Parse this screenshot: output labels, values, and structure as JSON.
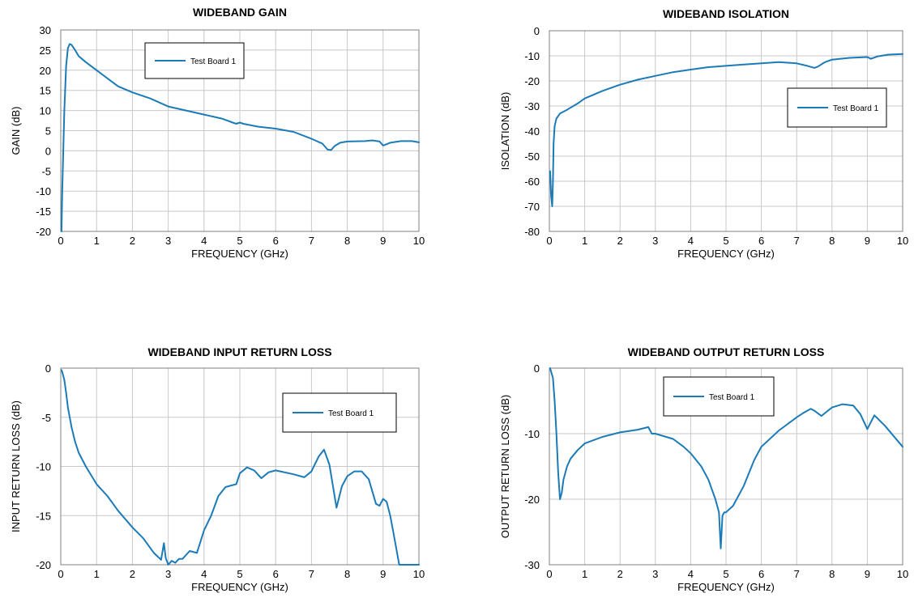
{
  "chart_data": [
    {
      "type": "line",
      "title": "WIDEBAND GAIN",
      "xlabel": "FREQUENCY (GHz)",
      "ylabel": "GAIN (dB)",
      "xlim": [
        0,
        10
      ],
      "ylim": [
        -20,
        30
      ],
      "xticks": [
        0,
        1,
        2,
        3,
        4,
        5,
        6,
        7,
        8,
        9,
        10
      ],
      "yticks": [
        -20,
        -15,
        -10,
        -5,
        0,
        5,
        10,
        15,
        20,
        25,
        30
      ],
      "grid": true,
      "legend_position": "top-left",
      "series": [
        {
          "name": "Test Board 1",
          "color": "#1a7bb8",
          "x": [
            0.02,
            0.04,
            0.07,
            0.1,
            0.15,
            0.2,
            0.25,
            0.3,
            0.4,
            0.5,
            0.7,
            1.0,
            1.3,
            1.6,
            2.0,
            2.5,
            3.0,
            3.5,
            4.0,
            4.5,
            4.8,
            4.9,
            5.0,
            5.1,
            5.5,
            6.0,
            6.5,
            7.0,
            7.3,
            7.45,
            7.55,
            7.65,
            7.8,
            8.0,
            8.5,
            8.7,
            8.9,
            9.0,
            9.2,
            9.5,
            9.8,
            10.0
          ],
          "y": [
            -20,
            -10,
            0,
            10,
            21,
            25.5,
            26.5,
            26.3,
            25,
            23.5,
            22,
            20,
            18,
            16,
            14.5,
            13,
            11,
            10,
            9,
            8,
            7,
            6.7,
            7,
            6.7,
            6,
            5.5,
            4.7,
            3,
            1.8,
            0.3,
            0.2,
            1.2,
            2,
            2.3,
            2.4,
            2.6,
            2.3,
            1.3,
            2,
            2.4,
            2.4,
            2.1
          ]
        }
      ]
    },
    {
      "type": "line",
      "title": "WIDEBAND ISOLATION",
      "xlabel": "FREQUENCY (GHz)",
      "ylabel": "ISOLATION (dB)",
      "xlim": [
        0,
        10
      ],
      "ylim": [
        -80,
        0
      ],
      "xticks": [
        0,
        1,
        2,
        3,
        4,
        5,
        6,
        7,
        8,
        9,
        10
      ],
      "yticks": [
        -80,
        -70,
        -60,
        -50,
        -40,
        -30,
        -20,
        -10,
        0
      ],
      "grid": true,
      "legend_position": "right",
      "series": [
        {
          "name": "Test Board 1",
          "color": "#1a7bb8",
          "x": [
            0.02,
            0.05,
            0.08,
            0.1,
            0.12,
            0.15,
            0.2,
            0.3,
            0.5,
            0.8,
            1.0,
            1.5,
            2.0,
            2.5,
            3.0,
            3.5,
            4.0,
            4.5,
            5.0,
            5.5,
            6.0,
            6.5,
            7.0,
            7.3,
            7.5,
            7.6,
            7.8,
            8.0,
            8.5,
            9.0,
            9.1,
            9.3,
            9.6,
            10.0
          ],
          "y": [
            -56,
            -66,
            -70,
            -60,
            -45,
            -38,
            -35,
            -33,
            -31.5,
            -29,
            -27,
            -24,
            -21.5,
            -19.5,
            -18,
            -16.5,
            -15.5,
            -14.5,
            -14,
            -13.5,
            -13,
            -12.5,
            -13,
            -14,
            -14.8,
            -14.3,
            -12.5,
            -11.5,
            -10.8,
            -10.5,
            -11.2,
            -10.2,
            -9.5,
            -9.3
          ]
        }
      ]
    },
    {
      "type": "line",
      "title": "WIDEBAND INPUT RETURN LOSS",
      "xlabel": "FREQUENCY (GHz)",
      "ylabel": "INPUT RETURN LOSS (dB)",
      "xlim": [
        0,
        10
      ],
      "ylim": [
        -20,
        0
      ],
      "xticks": [
        0,
        1,
        2,
        3,
        4,
        5,
        6,
        7,
        8,
        9,
        10
      ],
      "yticks": [
        -20,
        -15,
        -10,
        -5,
        0
      ],
      "grid": true,
      "legend_position": "top-right",
      "series": [
        {
          "name": "Test Board 1",
          "color": "#1a7bb8",
          "x": [
            0.02,
            0.05,
            0.1,
            0.15,
            0.2,
            0.3,
            0.4,
            0.5,
            0.7,
            1.0,
            1.3,
            1.6,
            2.0,
            2.3,
            2.6,
            2.8,
            2.88,
            2.93,
            3.0,
            3.1,
            3.2,
            3.3,
            3.4,
            3.6,
            3.8,
            4.0,
            4.2,
            4.4,
            4.6,
            4.9,
            5.0,
            5.2,
            5.4,
            5.6,
            5.8,
            6.0,
            6.5,
            6.8,
            7.0,
            7.2,
            7.35,
            7.5,
            7.7,
            7.85,
            8.0,
            8.2,
            8.4,
            8.6,
            8.8,
            8.9,
            9.0,
            9.1,
            9.2,
            9.3,
            9.45,
            10.0
          ],
          "y": [
            -0.2,
            -0.5,
            -1.2,
            -2.5,
            -4,
            -6,
            -7.5,
            -8.6,
            -10,
            -11.8,
            -13,
            -14.5,
            -16.2,
            -17.3,
            -18.8,
            -19.5,
            -17.8,
            -19.3,
            -20,
            -19.6,
            -19.8,
            -19.4,
            -19.4,
            -18.6,
            -18.8,
            -16.5,
            -15,
            -13,
            -12.1,
            -11.8,
            -10.7,
            -10.1,
            -10.4,
            -11.2,
            -10.6,
            -10.4,
            -10.8,
            -11.1,
            -10.5,
            -9,
            -8.3,
            -9.8,
            -14.2,
            -12,
            -11,
            -10.5,
            -10.5,
            -11.3,
            -13.8,
            -14,
            -13.3,
            -13.6,
            -15,
            -17,
            -20,
            -20
          ]
        }
      ]
    },
    {
      "type": "line",
      "title": "WIDEBAND OUTPUT RETURN LOSS",
      "xlabel": "FREQUENCY (GHz)",
      "ylabel": "OUTPUT RETURN LOSS (dB)",
      "xlim": [
        0,
        10
      ],
      "ylim": [
        -30,
        0
      ],
      "xticks": [
        0,
        1,
        2,
        3,
        4,
        5,
        6,
        7,
        8,
        9,
        10
      ],
      "yticks": [
        -30,
        -20,
        -10,
        0
      ],
      "grid": true,
      "legend_position": "top-left",
      "series": [
        {
          "name": "Test Board 1",
          "color": "#1a7bb8",
          "x": [
            0.02,
            0.1,
            0.15,
            0.2,
            0.25,
            0.3,
            0.35,
            0.4,
            0.5,
            0.6,
            0.8,
            1.0,
            1.5,
            2.0,
            2.5,
            2.8,
            2.9,
            3.0,
            3.5,
            3.8,
            4.0,
            4.3,
            4.5,
            4.7,
            4.8,
            4.85,
            4.9,
            4.95,
            5.0,
            5.2,
            5.5,
            5.8,
            6.0,
            6.5,
            7.0,
            7.2,
            7.4,
            7.5,
            7.7,
            8.0,
            8.3,
            8.6,
            8.8,
            9.0,
            9.2,
            9.5,
            10.0
          ],
          "y": [
            0,
            -1.5,
            -5,
            -10,
            -16,
            -20,
            -19,
            -17,
            -15,
            -13.8,
            -12.5,
            -11.5,
            -10.5,
            -9.8,
            -9.4,
            -9,
            -10,
            -10,
            -10.8,
            -12,
            -13,
            -15,
            -17,
            -20,
            -22,
            -27.5,
            -22.5,
            -22,
            -22,
            -21,
            -18,
            -14,
            -12,
            -9.5,
            -7.5,
            -6.8,
            -6.2,
            -6.5,
            -7.3,
            -6,
            -5.5,
            -5.7,
            -7,
            -9.3,
            -7.2,
            -8.8,
            -12
          ]
        }
      ]
    }
  ]
}
